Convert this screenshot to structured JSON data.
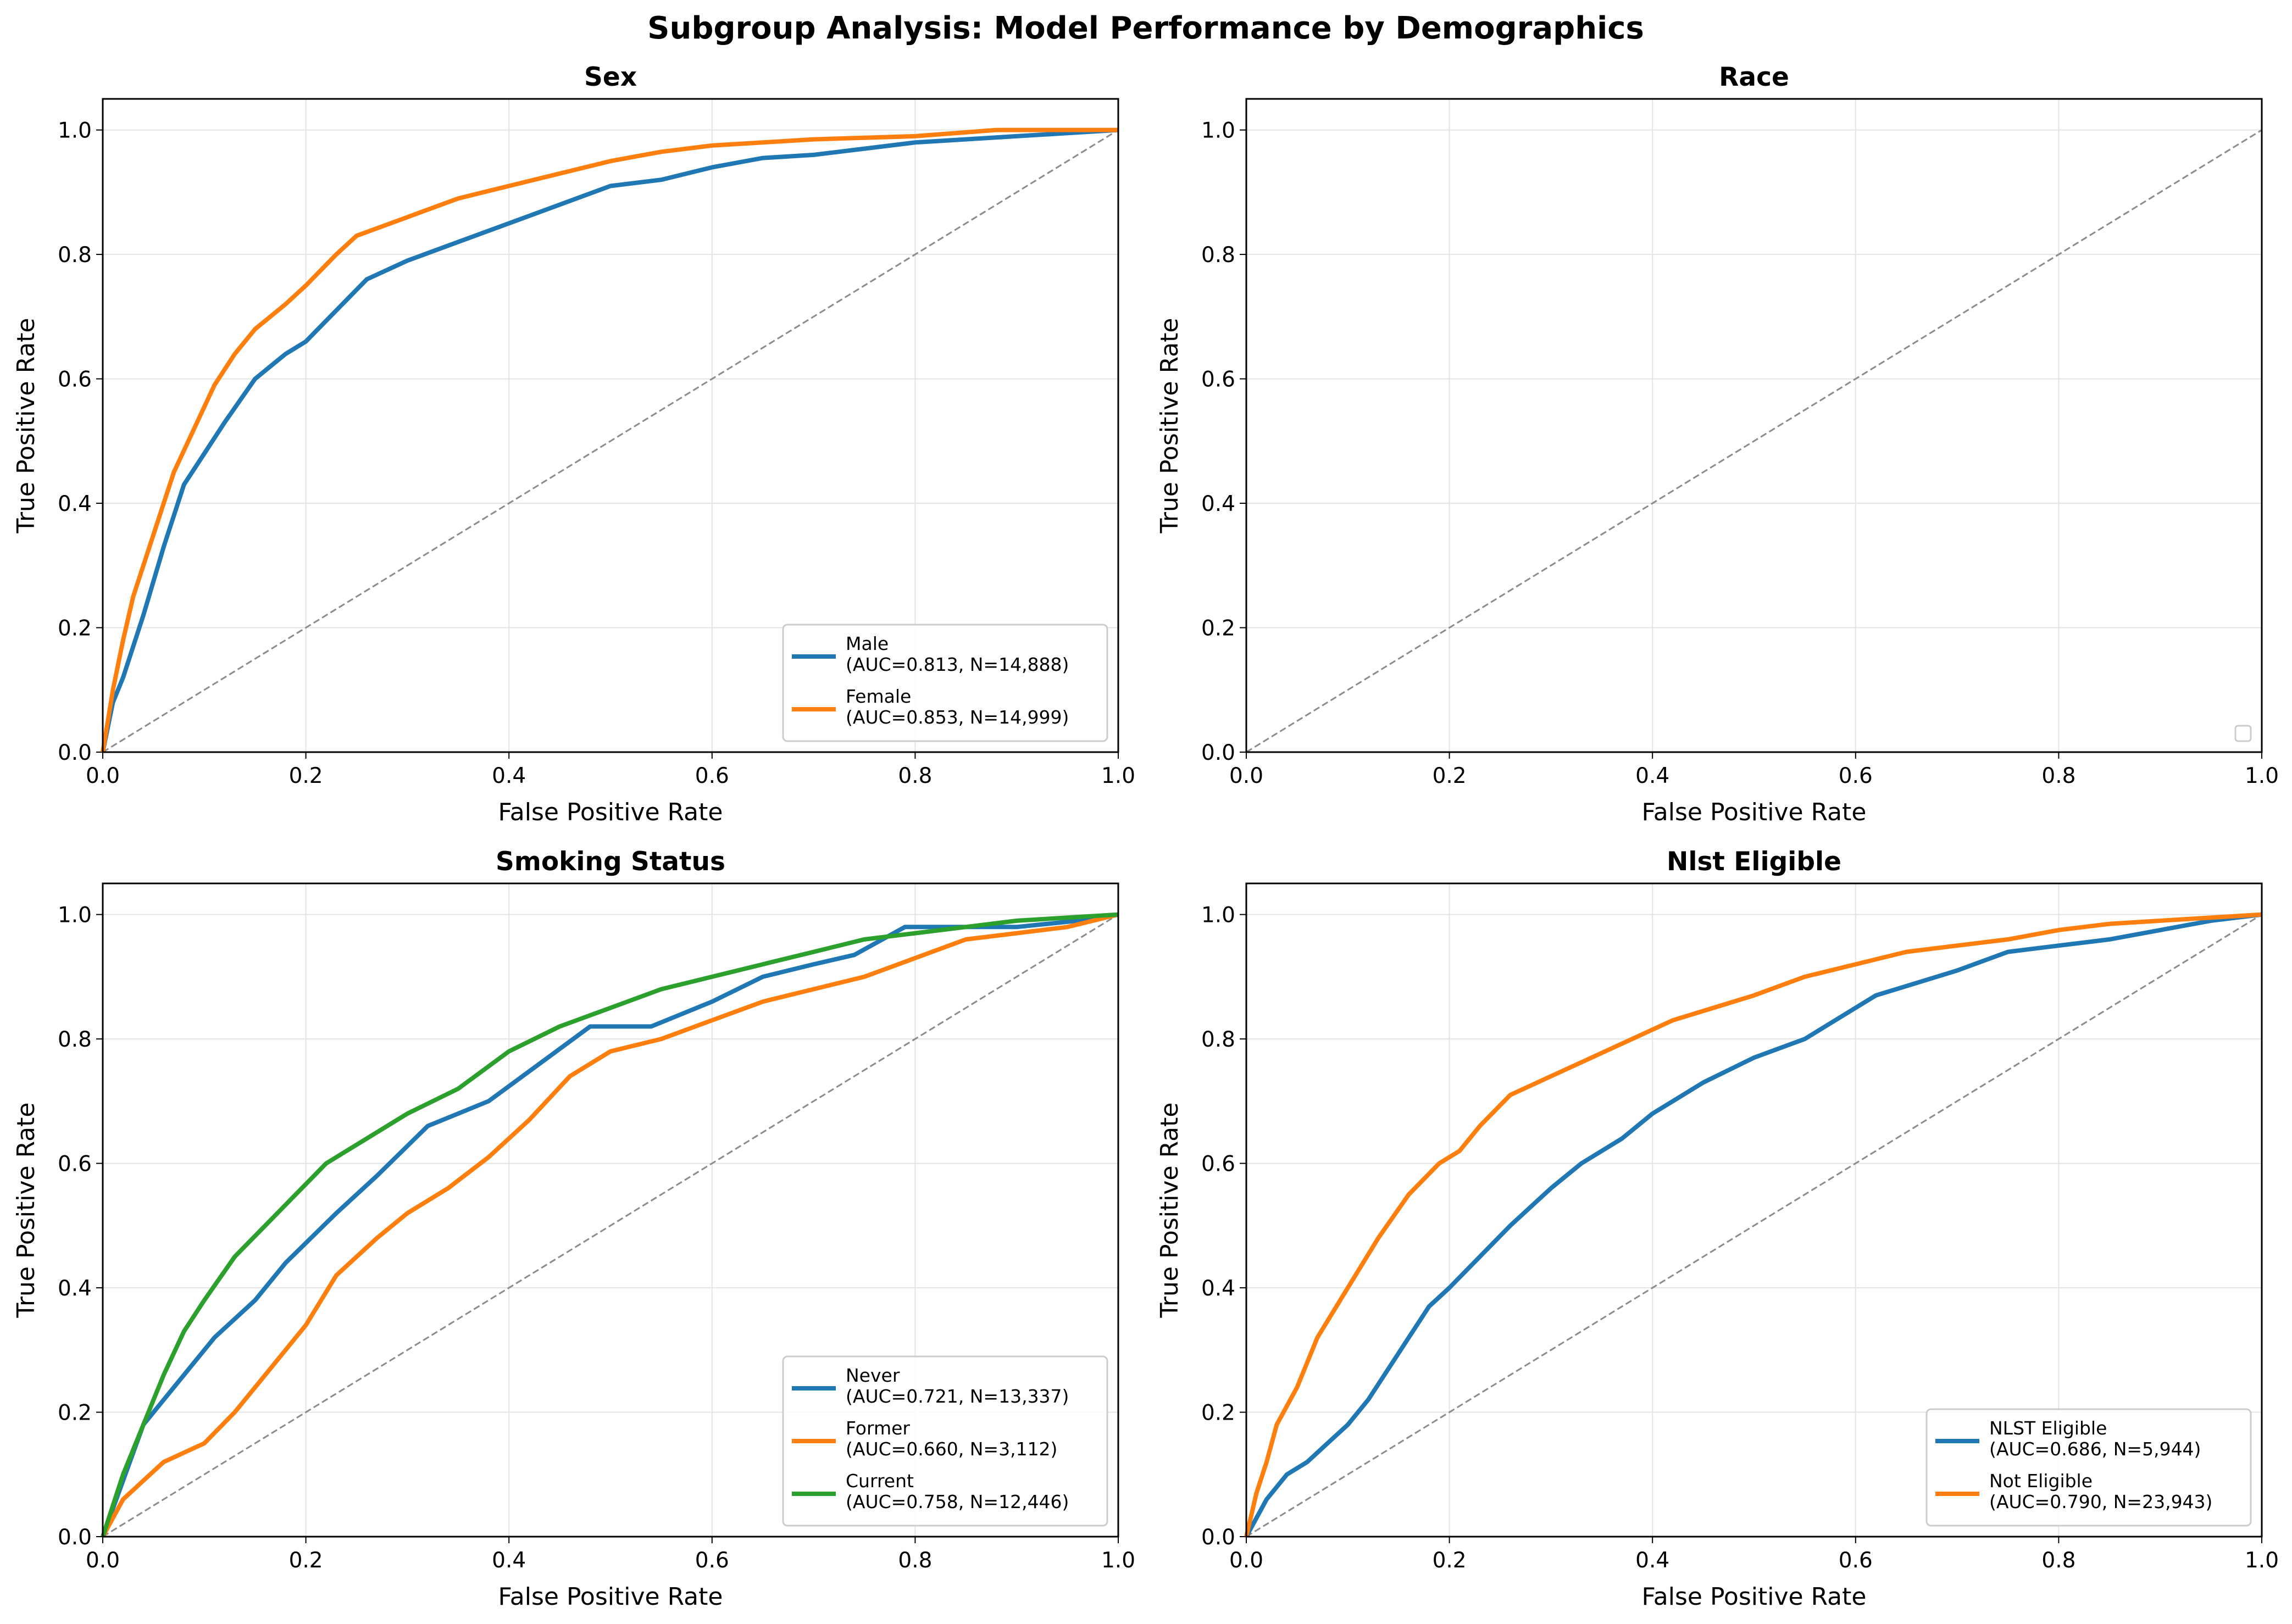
{
  "figure": {
    "title": "Subgroup Analysis: Model Performance by Demographics"
  },
  "chart_data": [
    {
      "type": "line",
      "title": "Sex",
      "xlabel": "False Positive Rate",
      "ylabel": "True Positive Rate",
      "xlim": [
        0,
        1
      ],
      "ylim": [
        0,
        1.05
      ],
      "xticks": [
        "0.0",
        "0.2",
        "0.4",
        "0.6",
        "0.8",
        "1.0"
      ],
      "yticks": [
        "0.0",
        "0.2",
        "0.4",
        "0.6",
        "0.8",
        "1.0"
      ],
      "grid": true,
      "legend_position": "lower-right",
      "diagonal": true,
      "series": [
        {
          "name": "Male",
          "label_line1": "Male",
          "label_line2": "(AUC=0.813, N=14,888)",
          "color": "#1f77b4",
          "x": [
            0,
            0.01,
            0.02,
            0.04,
            0.06,
            0.08,
            0.1,
            0.12,
            0.15,
            0.18,
            0.2,
            0.23,
            0.26,
            0.3,
            0.35,
            0.4,
            0.45,
            0.5,
            0.55,
            0.6,
            0.65,
            0.7,
            0.75,
            0.8,
            0.85,
            0.9,
            0.95,
            1.0
          ],
          "y": [
            0,
            0.08,
            0.12,
            0.22,
            0.33,
            0.43,
            0.48,
            0.53,
            0.6,
            0.64,
            0.66,
            0.71,
            0.76,
            0.79,
            0.82,
            0.85,
            0.88,
            0.91,
            0.92,
            0.94,
            0.955,
            0.96,
            0.97,
            0.98,
            0.985,
            0.99,
            0.995,
            1.0
          ]
        },
        {
          "name": "Female",
          "label_line1": "Female",
          "label_line2": "(AUC=0.853, N=14,999)",
          "color": "#ff7f0e",
          "x": [
            0,
            0.01,
            0.02,
            0.03,
            0.05,
            0.07,
            0.09,
            0.11,
            0.13,
            0.15,
            0.18,
            0.2,
            0.23,
            0.25,
            0.3,
            0.35,
            0.4,
            0.45,
            0.5,
            0.55,
            0.6,
            0.65,
            0.7,
            0.8,
            0.88,
            1.0
          ],
          "y": [
            0,
            0.1,
            0.18,
            0.25,
            0.35,
            0.45,
            0.52,
            0.59,
            0.64,
            0.68,
            0.72,
            0.75,
            0.8,
            0.83,
            0.86,
            0.89,
            0.91,
            0.93,
            0.95,
            0.965,
            0.975,
            0.98,
            0.985,
            0.99,
            1.0,
            1.0
          ]
        }
      ]
    },
    {
      "type": "line",
      "title": "Race",
      "xlabel": "False Positive Rate",
      "ylabel": "True Positive Rate",
      "xlim": [
        0,
        1
      ],
      "ylim": [
        0,
        1.05
      ],
      "xticks": [
        "0.0",
        "0.2",
        "0.4",
        "0.6",
        "0.8",
        "1.0"
      ],
      "yticks": [
        "0.0",
        "0.2",
        "0.4",
        "0.6",
        "0.8",
        "1.0"
      ],
      "grid": true,
      "legend_position": "lower-right",
      "diagonal": true,
      "series": []
    },
    {
      "type": "line",
      "title": "Smoking Status",
      "xlabel": "False Positive Rate",
      "ylabel": "True Positive Rate",
      "xlim": [
        0,
        1
      ],
      "ylim": [
        0,
        1.05
      ],
      "xticks": [
        "0.0",
        "0.2",
        "0.4",
        "0.6",
        "0.8",
        "1.0"
      ],
      "yticks": [
        "0.0",
        "0.2",
        "0.4",
        "0.6",
        "0.8",
        "1.0"
      ],
      "grid": true,
      "legend_position": "lower-right",
      "diagonal": true,
      "series": [
        {
          "name": "Never",
          "label_line1": "Never",
          "label_line2": "(AUC=0.721, N=13,337)",
          "color": "#1f77b4",
          "x": [
            0,
            0.04,
            0.07,
            0.11,
            0.15,
            0.18,
            0.23,
            0.27,
            0.32,
            0.38,
            0.43,
            0.48,
            0.54,
            0.6,
            0.65,
            0.7,
            0.74,
            0.79,
            0.9,
            0.96,
            1.0
          ],
          "y": [
            0,
            0.18,
            0.24,
            0.32,
            0.38,
            0.44,
            0.52,
            0.58,
            0.66,
            0.7,
            0.76,
            0.82,
            0.82,
            0.86,
            0.9,
            0.92,
            0.935,
            0.98,
            0.98,
            0.99,
            1.0
          ]
        },
        {
          "name": "Former",
          "label_line1": "Former",
          "label_line2": "(AUC=0.660, N=3,112)",
          "color": "#ff7f0e",
          "x": [
            0,
            0.02,
            0.04,
            0.06,
            0.1,
            0.13,
            0.16,
            0.2,
            0.23,
            0.27,
            0.3,
            0.34,
            0.38,
            0.42,
            0.46,
            0.5,
            0.55,
            0.6,
            0.65,
            0.7,
            0.75,
            0.8,
            0.85,
            0.9,
            0.95,
            1.0
          ],
          "y": [
            0,
            0.06,
            0.09,
            0.12,
            0.15,
            0.2,
            0.26,
            0.34,
            0.42,
            0.48,
            0.52,
            0.56,
            0.61,
            0.67,
            0.74,
            0.78,
            0.8,
            0.83,
            0.86,
            0.88,
            0.9,
            0.93,
            0.96,
            0.97,
            0.98,
            1.0
          ]
        },
        {
          "name": "Current",
          "label_line1": "Current",
          "label_line2": "(AUC=0.758, N=12,446)",
          "color": "#2ca02c",
          "x": [
            0,
            0.02,
            0.04,
            0.06,
            0.08,
            0.1,
            0.13,
            0.16,
            0.19,
            0.22,
            0.26,
            0.3,
            0.35,
            0.4,
            0.45,
            0.5,
            0.55,
            0.6,
            0.65,
            0.7,
            0.75,
            0.8,
            0.9,
            1.0
          ],
          "y": [
            0,
            0.1,
            0.18,
            0.26,
            0.33,
            0.38,
            0.45,
            0.5,
            0.55,
            0.6,
            0.64,
            0.68,
            0.72,
            0.78,
            0.82,
            0.85,
            0.88,
            0.9,
            0.92,
            0.94,
            0.96,
            0.97,
            0.99,
            1.0
          ]
        }
      ]
    },
    {
      "type": "line",
      "title": "Nlst Eligible",
      "xlabel": "False Positive Rate",
      "ylabel": "True Positive Rate",
      "xlim": [
        0,
        1
      ],
      "ylim": [
        0,
        1.05
      ],
      "xticks": [
        "0.0",
        "0.2",
        "0.4",
        "0.6",
        "0.8",
        "1.0"
      ],
      "yticks": [
        "0.0",
        "0.2",
        "0.4",
        "0.6",
        "0.8",
        "1.0"
      ],
      "grid": true,
      "legend_position": "lower-right",
      "diagonal": true,
      "series": [
        {
          "name": "NLST Eligible",
          "label_line1": "NLST Eligible",
          "label_line2": "(AUC=0.686, N=5,944)",
          "color": "#1f77b4",
          "x": [
            0,
            0.02,
            0.04,
            0.06,
            0.08,
            0.1,
            0.12,
            0.14,
            0.16,
            0.18,
            0.2,
            0.23,
            0.26,
            0.3,
            0.33,
            0.37,
            0.4,
            0.45,
            0.5,
            0.55,
            0.58,
            0.62,
            0.66,
            0.7,
            0.75,
            0.8,
            0.85,
            0.9,
            0.95,
            1.0
          ],
          "y": [
            0,
            0.06,
            0.1,
            0.12,
            0.15,
            0.18,
            0.22,
            0.27,
            0.32,
            0.37,
            0.4,
            0.45,
            0.5,
            0.56,
            0.6,
            0.64,
            0.68,
            0.73,
            0.77,
            0.8,
            0.83,
            0.87,
            0.89,
            0.91,
            0.94,
            0.95,
            0.96,
            0.975,
            0.99,
            1.0
          ]
        },
        {
          "name": "Not Eligible",
          "label_line1": "Not Eligible",
          "label_line2": "(AUC=0.790, N=23,943)",
          "color": "#ff7f0e",
          "x": [
            0,
            0.01,
            0.02,
            0.03,
            0.05,
            0.07,
            0.1,
            0.13,
            0.16,
            0.19,
            0.21,
            0.23,
            0.26,
            0.3,
            0.34,
            0.38,
            0.42,
            0.46,
            0.5,
            0.55,
            0.6,
            0.65,
            0.7,
            0.75,
            0.8,
            0.85,
            0.9,
            0.95,
            1.0
          ],
          "y": [
            0,
            0.07,
            0.12,
            0.18,
            0.24,
            0.32,
            0.4,
            0.48,
            0.55,
            0.6,
            0.62,
            0.66,
            0.71,
            0.74,
            0.77,
            0.8,
            0.83,
            0.85,
            0.87,
            0.9,
            0.92,
            0.94,
            0.95,
            0.96,
            0.975,
            0.985,
            0.99,
            0.995,
            1.0
          ]
        }
      ]
    }
  ]
}
